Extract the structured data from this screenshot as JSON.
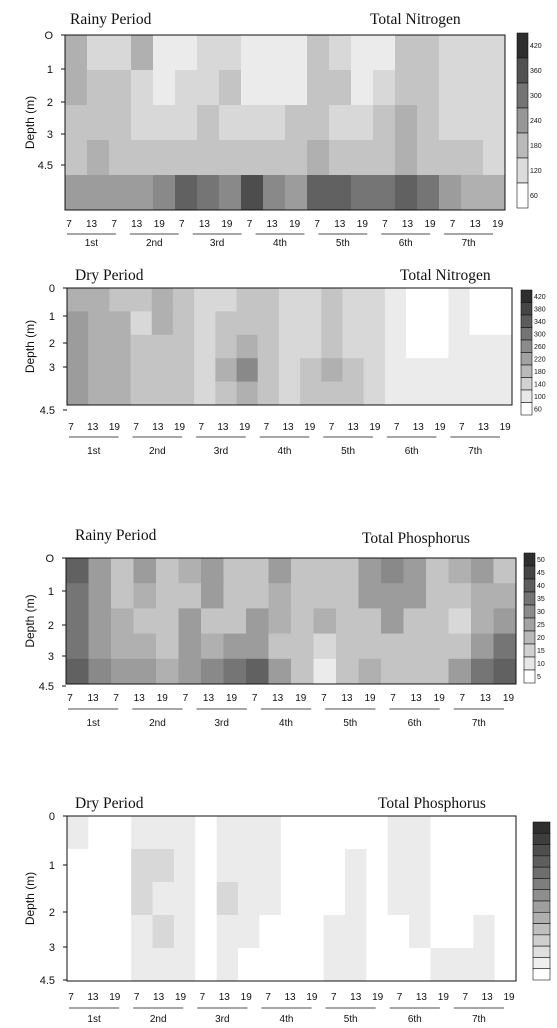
{
  "chart_data": [
    {
      "type": "heatmap",
      "title_left": "Rainy Period",
      "title_right": "Total Nitrogen",
      "ylabel": "Depth (m)",
      "y_ticks": [
        "O",
        "1",
        "2",
        "3",
        "4.5"
      ],
      "x_day_labels": [
        "7",
        "13",
        "7",
        "13",
        "19",
        "7",
        "13",
        "19",
        "7",
        "13",
        "19",
        "7",
        "13",
        "19",
        "7",
        "13",
        "19",
        "7",
        "13",
        "19"
      ],
      "x_group_labels": [
        "1st",
        "2nd",
        "3rd",
        "4th",
        "5th",
        "6th",
        "7th"
      ],
      "legend_levels": [
        "420",
        "360",
        "300",
        "240",
        "180",
        "120",
        "60"
      ],
      "colors": {
        "low": "#ffffff",
        "high": "#2e2e2e"
      },
      "samples_depth_m": [
        0,
        1,
        2,
        3,
        4.5
      ],
      "grid_values": [
        [
          210,
          150,
          150,
          200,
          100,
          110,
          120,
          130,
          90,
          90,
          100,
          170,
          150,
          90,
          100,
          180,
          170,
          120,
          130,
          120
        ],
        [
          200,
          160,
          180,
          150,
          100,
          120,
          150,
          160,
          100,
          100,
          110,
          180,
          160,
          100,
          120,
          190,
          180,
          120,
          130,
          140
        ],
        [
          180,
          180,
          190,
          140,
          120,
          150,
          160,
          150,
          140,
          120,
          170,
          190,
          150,
          140,
          160,
          200,
          160,
          140,
          140,
          150
        ],
        [
          190,
          200,
          180,
          160,
          160,
          180,
          170,
          170,
          170,
          160,
          190,
          200,
          180,
          170,
          190,
          200,
          180,
          160,
          160,
          150
        ],
        [
          250,
          250,
          240,
          260,
          300,
          380,
          340,
          300,
          420,
          300,
          260,
          360,
          380,
          320,
          330,
          390,
          320,
          240,
          230,
          210
        ]
      ]
    },
    {
      "type": "heatmap",
      "title_left": "Dry Period",
      "title_right": "Total Nitrogen",
      "ylabel": "Depth (m)",
      "y_ticks": [
        "0",
        "1",
        "2",
        "3",
        "4.5"
      ],
      "x_day_labels": [
        "7",
        "13",
        "19",
        "7",
        "13",
        "19",
        "7",
        "13",
        "19",
        "7",
        "13",
        "19",
        "7",
        "13",
        "19",
        "7",
        "13",
        "19",
        "7",
        "13",
        "19"
      ],
      "x_group_labels": [
        "1st",
        "2nd",
        "3rd",
        "4th",
        "5th",
        "6th",
        "7th"
      ],
      "legend_levels": [
        "420",
        "380",
        "340",
        "300",
        "260",
        "220",
        "180",
        "140",
        "100",
        "60"
      ],
      "colors": {
        "low": "#ffffff",
        "high": "#2e2e2e"
      },
      "samples_depth_m": [
        0,
        1,
        2,
        3,
        4.5
      ],
      "grid_values": [
        [
          230,
          200,
          190,
          160,
          200,
          170,
          140,
          150,
          160,
          170,
          150,
          150,
          170,
          150,
          130,
          80,
          70,
          70,
          80,
          70,
          70
        ],
        [
          240,
          210,
          200,
          150,
          220,
          170,
          130,
          160,
          170,
          160,
          140,
          140,
          160,
          140,
          120,
          80,
          70,
          70,
          80,
          70,
          70
        ],
        [
          250,
          220,
          200,
          160,
          190,
          160,
          150,
          180,
          200,
          160,
          140,
          150,
          170,
          150,
          120,
          80,
          70,
          70,
          80,
          90,
          80
        ],
        [
          260,
          230,
          210,
          170,
          180,
          170,
          150,
          220,
          300,
          170,
          150,
          160,
          200,
          170,
          130,
          90,
          80,
          90,
          110,
          110,
          90
        ],
        [
          240,
          220,
          200,
          170,
          170,
          170,
          150,
          180,
          200,
          170,
          150,
          160,
          190,
          170,
          130,
          90,
          80,
          90,
          100,
          100,
          90
        ]
      ]
    },
    {
      "type": "heatmap",
      "title_left": "Rainy Period",
      "title_right": "Total Phosphorus",
      "ylabel": "Depth (m)",
      "y_ticks": [
        "O",
        "1",
        "2",
        "3",
        "4.5"
      ],
      "x_day_labels": [
        "7",
        "13",
        "7",
        "13",
        "19",
        "7",
        "13",
        "19",
        "7",
        "13",
        "19",
        "7",
        "13",
        "19",
        "7",
        "13",
        "19",
        "7",
        "13",
        "19"
      ],
      "x_group_labels": [
        "1st",
        "2nd",
        "3rd",
        "4th",
        "5th",
        "6th",
        "7th"
      ],
      "legend_levels": [
        "50",
        "45",
        "40",
        "35",
        "30",
        "25",
        "20",
        "15",
        "10",
        "5"
      ],
      "colors": {
        "low": "#ffffff",
        "high": "#2e2e2e"
      },
      "samples_depth_m": [
        0,
        1,
        2,
        3,
        4.5
      ],
      "grid_values": [
        [
          45,
          30,
          20,
          30,
          22,
          25,
          32,
          20,
          22,
          30,
          20,
          22,
          22,
          32,
          35,
          30,
          22,
          25,
          28,
          22
        ],
        [
          42,
          28,
          22,
          25,
          22,
          22,
          28,
          22,
          22,
          25,
          20,
          22,
          22,
          28,
          30,
          28,
          22,
          22,
          25,
          25
        ],
        [
          40,
          30,
          25,
          22,
          20,
          28,
          22,
          22,
          28,
          25,
          20,
          25,
          22,
          22,
          28,
          22,
          20,
          15,
          25,
          30
        ],
        [
          42,
          32,
          25,
          25,
          22,
          30,
          25,
          28,
          30,
          22,
          18,
          15,
          20,
          22,
          18,
          18,
          20,
          22,
          30,
          38
        ],
        [
          45,
          35,
          30,
          30,
          25,
          30,
          35,
          38,
          45,
          32,
          20,
          12,
          18,
          25,
          22,
          22,
          22,
          28,
          38,
          45
        ]
      ]
    },
    {
      "type": "heatmap",
      "title_left": "Dry Period",
      "title_right": "Total Phosphorus",
      "ylabel": "Depth (m)",
      "y_ticks": [
        "0",
        "1",
        "2",
        "3",
        "4.5"
      ],
      "x_day_labels": [
        "7",
        "13",
        "19",
        "7",
        "13",
        "19",
        "7",
        "13",
        "19",
        "7",
        "13",
        "19",
        "7",
        "13",
        "19",
        "7",
        "13",
        "19",
        "7",
        "13",
        "19"
      ],
      "x_group_labels": [
        "1st",
        "2nd",
        "3rd",
        "4th",
        "5th",
        "6th",
        "7th"
      ],
      "legend_levels": [
        "",
        "",
        "",
        "",
        "",
        "",
        "",
        "",
        "",
        "",
        "",
        "",
        "",
        ""
      ],
      "colors": {
        "low": "#ffffff",
        "high": "#2e2e2e"
      },
      "samples_depth_m": [
        0,
        1,
        2,
        3,
        4.5
      ],
      "grid_values": [
        [
          8,
          5,
          5,
          12,
          12,
          8,
          6,
          8,
          12,
          12,
          6,
          5,
          6,
          5,
          5,
          12,
          12,
          5,
          5,
          5,
          5
        ],
        [
          6,
          5,
          6,
          13,
          14,
          10,
          6,
          10,
          12,
          8,
          6,
          5,
          5,
          10,
          5,
          10,
          12,
          5,
          5,
          5,
          5
        ],
        [
          6,
          5,
          6,
          13,
          12,
          8,
          6,
          14,
          12,
          8,
          6,
          5,
          6,
          10,
          5,
          8,
          12,
          5,
          5,
          5,
          5
        ],
        [
          6,
          5,
          5,
          12,
          13,
          10,
          6,
          12,
          10,
          6,
          5,
          5,
          8,
          10,
          5,
          5,
          8,
          5,
          6,
          10,
          5
        ],
        [
          6,
          5,
          5,
          10,
          12,
          10,
          6,
          8,
          6,
          5,
          5,
          5,
          8,
          10,
          6,
          5,
          5,
          8,
          12,
          10,
          5
        ]
      ]
    }
  ]
}
